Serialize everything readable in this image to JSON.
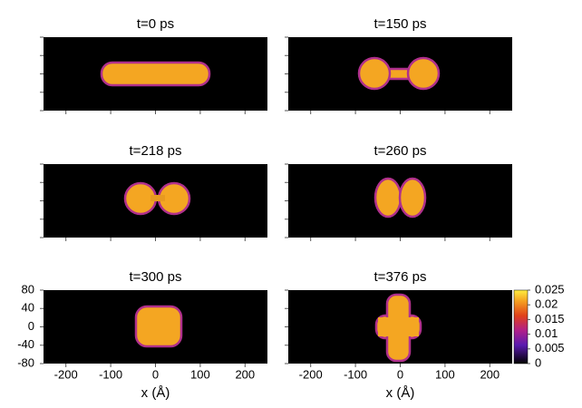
{
  "chart_data": [
    {
      "type": "heatmap",
      "title": "t=0 ps",
      "xlim": [
        -250,
        250
      ],
      "ylim": [
        -80,
        80
      ],
      "xticks": [
        -200,
        -100,
        0,
        100,
        200
      ],
      "yticks": [
        -80,
        -40,
        0,
        40,
        80
      ]
    },
    {
      "type": "heatmap",
      "title": "t=150 ps",
      "xlim": [
        -250,
        250
      ],
      "ylim": [
        -80,
        80
      ],
      "xticks": [
        -200,
        -100,
        0,
        100,
        200
      ],
      "yticks": [
        -80,
        -40,
        0,
        40,
        80
      ]
    },
    {
      "type": "heatmap",
      "title": "t=218 ps",
      "xlim": [
        -250,
        250
      ],
      "ylim": [
        -80,
        80
      ],
      "xticks": [
        -200,
        -100,
        0,
        100,
        200
      ],
      "yticks": [
        -80,
        -40,
        0,
        40,
        80
      ]
    },
    {
      "type": "heatmap",
      "title": "t=260 ps",
      "xlim": [
        -250,
        250
      ],
      "ylim": [
        -80,
        80
      ],
      "xticks": [
        -200,
        -100,
        0,
        100,
        200
      ],
      "yticks": [
        -80,
        -40,
        0,
        40,
        80
      ]
    },
    {
      "type": "heatmap",
      "title": "t=300 ps",
      "xlabel": "x (Å)",
      "xlim": [
        -250,
        250
      ],
      "ylim": [
        -80,
        80
      ],
      "xticks": [
        -200,
        -100,
        0,
        100,
        200
      ],
      "yticks": [
        -80,
        -40,
        0,
        40,
        80
      ]
    },
    {
      "type": "heatmap",
      "title": "t=376 ps",
      "xlabel": "x (Å)",
      "xlim": [
        -250,
        250
      ],
      "ylim": [
        -80,
        80
      ],
      "xticks": [
        -200,
        -100,
        0,
        100,
        200
      ],
      "yticks": [
        -80,
        -40,
        0,
        40,
        80
      ],
      "colorbar": {
        "clim": [
          0,
          0.025
        ],
        "ticks": [
          0,
          0.005,
          0.01,
          0.015,
          0.02,
          0.025
        ]
      }
    }
  ]
}
